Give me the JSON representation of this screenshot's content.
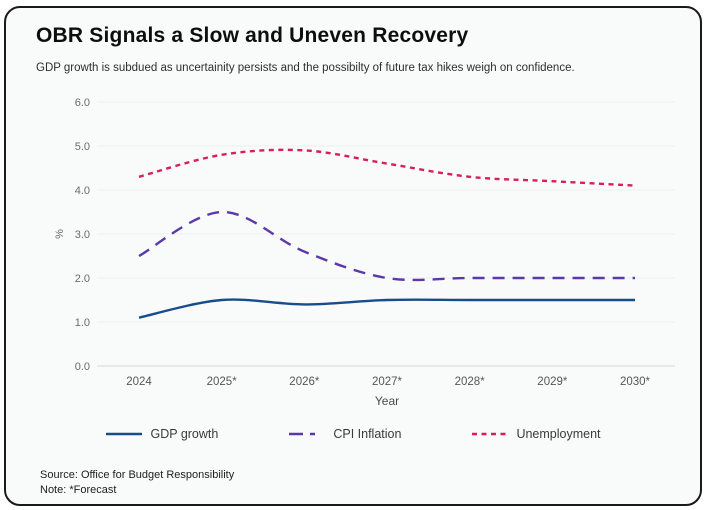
{
  "header": {
    "title": "OBR Signals a Slow and Uneven Recovery",
    "subtitle": "GDP growth is subdued as uncertainity persists and the possibilty of future tax hikes weigh on confidence."
  },
  "footer": {
    "source": "Source: Office for Budget Responsibility",
    "note": "Note: *Forecast"
  },
  "chart_data": {
    "type": "line",
    "title": "OBR Signals a Slow and Uneven Recovery",
    "x_categories": [
      "2024",
      "2025*",
      "2026*",
      "2027*",
      "2028*",
      "2029*",
      "2030*"
    ],
    "series": [
      {
        "name": "GDP growth",
        "values": [
          1.1,
          1.5,
          1.4,
          1.5,
          1.5,
          1.5,
          1.5
        ],
        "color": "#174d8c",
        "dash": "",
        "legend_dash": ""
      },
      {
        "name": "CPI Inflation",
        "values": [
          2.5,
          3.5,
          2.6,
          2.0,
          2.0,
          2.0,
          2.0
        ],
        "color": "#5b3aa8",
        "dash": "12 8",
        "legend_dash": "14 7 5 100"
      },
      {
        "name": "Unemployment",
        "values": [
          4.3,
          4.8,
          4.9,
          4.6,
          4.3,
          4.2,
          4.1
        ],
        "color": "#d81e5f",
        "dash": "5 4.5",
        "legend_dash": "5 4.5"
      }
    ],
    "xlabel": "Year",
    "ylabel": "%",
    "ylim": [
      0,
      6
    ],
    "yticks": [
      0,
      1,
      2,
      3,
      4,
      5,
      6
    ],
    "ytick_labels": [
      "0.0",
      "1.0",
      "2.0",
      "3.0",
      "4.0",
      "5.0",
      "6.0"
    ],
    "grid": true,
    "legend_position": "bottom"
  }
}
